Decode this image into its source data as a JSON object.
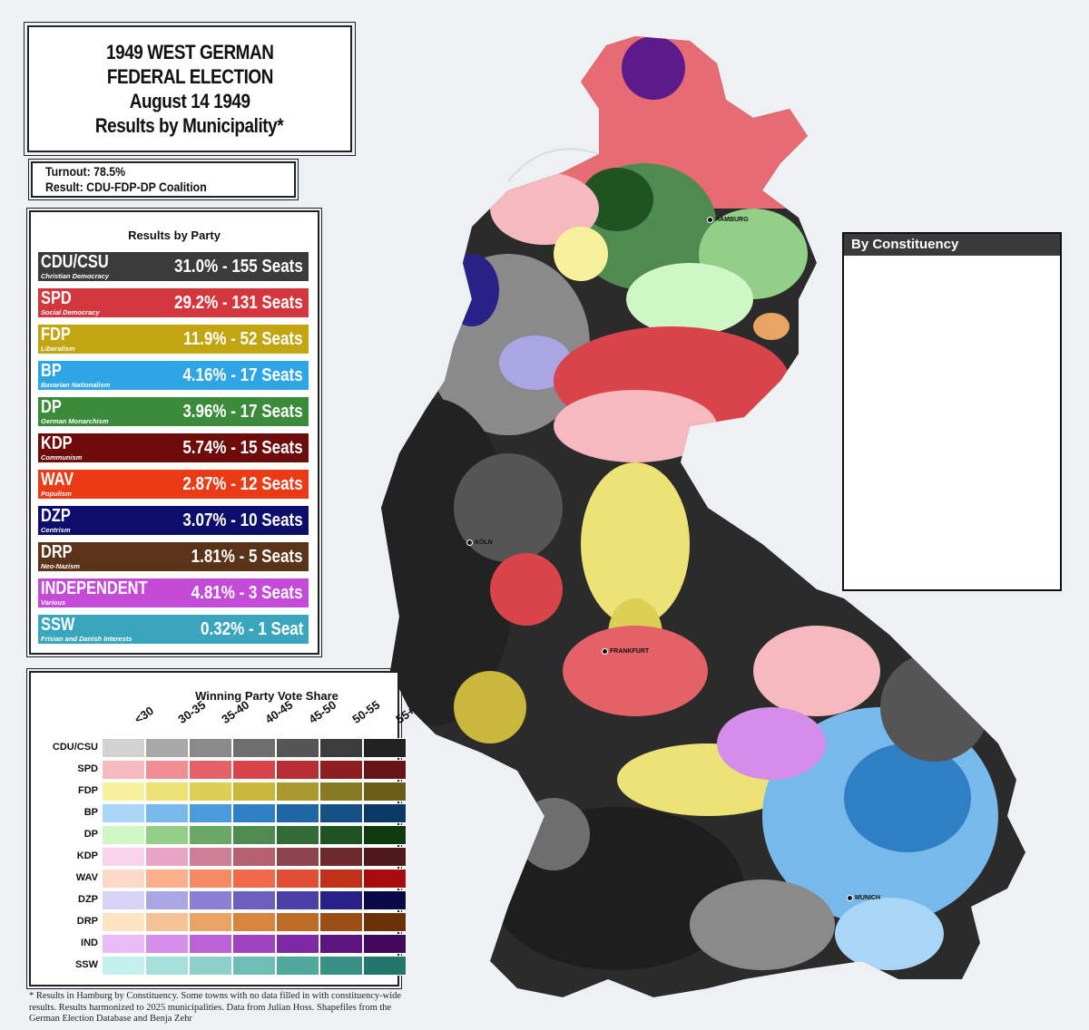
{
  "title": {
    "line1": "1949 WEST GERMAN",
    "line2": "FEDERAL ELECTION",
    "line3": "August 14 1949",
    "line4": "Results by Municipality*"
  },
  "summary": {
    "turnout": "Turnout: 78.5%",
    "result": "Result: CDU-FDP-DP Coalition"
  },
  "results_by_party": {
    "heading": "Results by Party",
    "parties": [
      {
        "name": "CDU/CSU",
        "ideology": "Christian Democracy",
        "result": "31.0% - 155 Seats",
        "color": "#3b3b3b"
      },
      {
        "name": "SPD",
        "ideology": "Social Democracy",
        "result": "29.2% - 131 Seats",
        "color": "#d3363d"
      },
      {
        "name": "FDP",
        "ideology": "Liberalism",
        "result": "11.9% - 52 Seats",
        "color": "#c3a411"
      },
      {
        "name": "BP",
        "ideology": "Bavarian Nationalism",
        "result": "4.16% - 17 Seats",
        "color": "#2ea6e6"
      },
      {
        "name": "DP",
        "ideology": "German Monarchism",
        "result": "3.96% - 17 Seats",
        "color": "#3b8b3b"
      },
      {
        "name": "KDP",
        "ideology": "Communism",
        "result": "5.74% - 15 Seats",
        "color": "#6e0b0b"
      },
      {
        "name": "WAV",
        "ideology": "Populism",
        "result": "2.87% - 12 Seats",
        "color": "#ea3a16"
      },
      {
        "name": "DZP",
        "ideology": "Centrism",
        "result": "3.07% - 10 Seats",
        "color": "#0d0d6b"
      },
      {
        "name": "DRP",
        "ideology": "Neo-Nazism",
        "result": "1.81% - 5 Seats",
        "color": "#5a3318"
      },
      {
        "name": "INDEPENDENT",
        "ideology": "Various",
        "result": "4.81% - 3 Seats",
        "color": "#c44ad8"
      },
      {
        "name": "SSW",
        "ideology": "Frisian and Danish Interests",
        "result": "0.32% - 1 Seat",
        "color": "#3aa6bd"
      }
    ]
  },
  "legend": {
    "title": "Winning Party Vote Share",
    "bins": [
      "<30",
      "30-35",
      "35-40",
      "40-45",
      "45-50",
      "50-55",
      "55+"
    ],
    "rows": [
      {
        "label": "CDU/CSU",
        "colors": [
          "#d2d2d2",
          "#a8a8a8",
          "#8a8a8a",
          "#6e6e6e",
          "#555555",
          "#3c3c3c",
          "#222222"
        ]
      },
      {
        "label": "SPD",
        "colors": [
          "#f6b9bd",
          "#ef8d93",
          "#e56168",
          "#d9434a",
          "#b72d33",
          "#8e1d22",
          "#671418"
        ]
      },
      {
        "label": "FDP",
        "colors": [
          "#f6f19a",
          "#ece275",
          "#dccf55",
          "#c9b83c",
          "#a9992e",
          "#877a22",
          "#6a5e16"
        ]
      },
      {
        "label": "BP",
        "colors": [
          "#a9d6f6",
          "#77b9ea",
          "#4a9bd9",
          "#2f7fc4",
          "#1f66a6",
          "#144f86",
          "#0b3966"
        ]
      },
      {
        "label": "DP",
        "colors": [
          "#cff6c5",
          "#93cf87",
          "#6aa866",
          "#4f8a50",
          "#336b36",
          "#1f5322",
          "#0b3a0e"
        ]
      },
      {
        "label": "KDP",
        "colors": [
          "#f9d3e8",
          "#e7a5c3",
          "#cf7f95",
          "#b5606e",
          "#8e4450",
          "#6c2a2f",
          "#4f181b"
        ]
      },
      {
        "label": "WAV",
        "colors": [
          "#fcd8c8",
          "#f9b08b",
          "#f48a62",
          "#f0694a",
          "#e04f33",
          "#bf3219",
          "#a80c0c"
        ]
      },
      {
        "label": "DZP",
        "colors": [
          "#d5d3f7",
          "#aaa6e4",
          "#8a80d3",
          "#6c5fbe",
          "#4b3fa8",
          "#2a2186",
          "#0a0847"
        ]
      },
      {
        "label": "DRP",
        "colors": [
          "#fde3c2",
          "#f6c394",
          "#e9a463",
          "#d6863e",
          "#bd6a26",
          "#9a4e14",
          "#6b3108"
        ]
      },
      {
        "label": "IND",
        "colors": [
          "#ecbaf6",
          "#d48ee9",
          "#bb62d8",
          "#9f44c1",
          "#7d28a4",
          "#5b1480",
          "#41085c"
        ]
      },
      {
        "label": "SSW",
        "colors": [
          "#c3efec",
          "#a7e0db",
          "#8dd0ca",
          "#6fbeb6",
          "#4fa89e",
          "#378f86",
          "#22766c"
        ]
      }
    ]
  },
  "inset": {
    "title": "By Constituency"
  },
  "cities": [
    {
      "name": "HAMBURG"
    },
    {
      "name": "KÖLN"
    },
    {
      "name": "FRANKFURT"
    },
    {
      "name": "MUNICH"
    }
  ],
  "footnote": "* Results in Hamburg by Constituency. Some towns with no data filled in with constituency-wide results. Results harmonized to 2025 municipalities. Data from Julian Hoss. Shapefiles from the German Election Database and Benja Zehr"
}
